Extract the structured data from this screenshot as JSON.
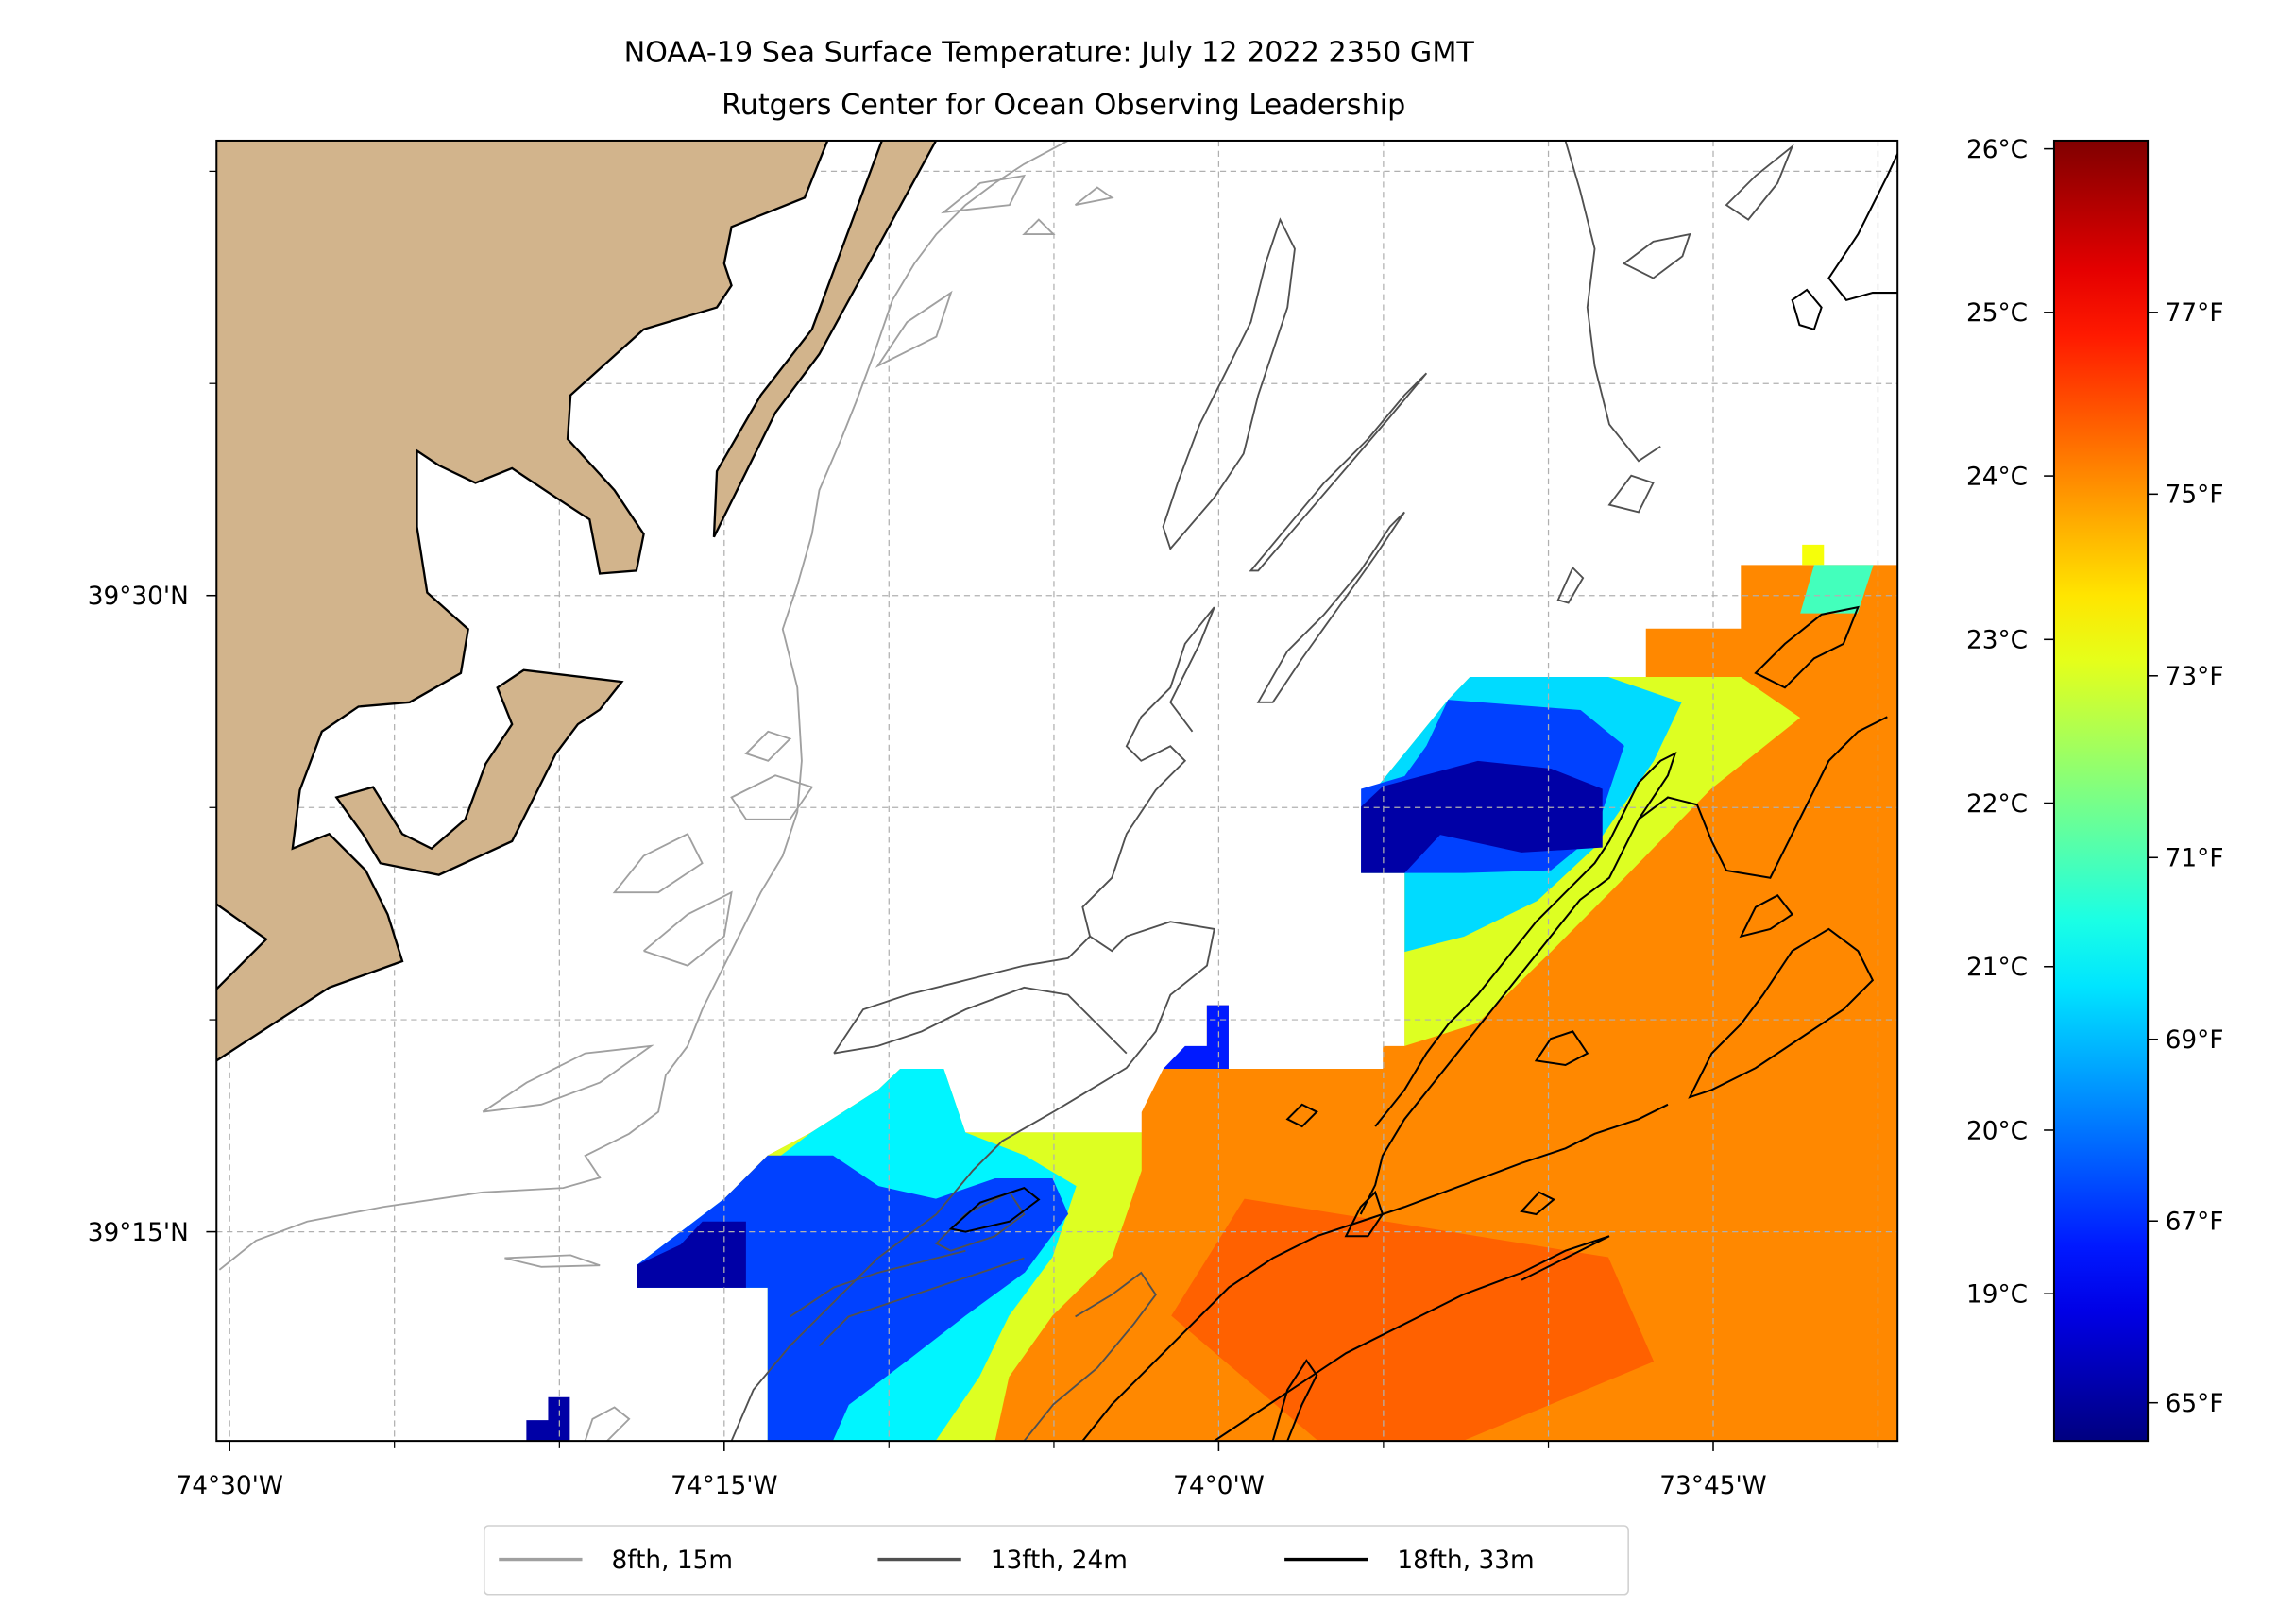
{
  "title": {
    "line1": "NOAA-19 Sea Surface Temperature: July 12 2022 2350 GMT",
    "line2": "Rutgers Center for Ocean Observing Leadership"
  },
  "colors": {
    "land": "#d2b48c",
    "contour_8fth": "#a0a0a0",
    "contour_13fth": "#505050",
    "contour_18fth": "#000000"
  },
  "chart_data": {
    "type": "heatmap",
    "colormap": "jet",
    "units": "°C",
    "clim": [
      18.1,
      26.05
    ],
    "extent": {
      "lon": [
        -74.507,
        -73.657
      ],
      "lat": [
        39.168,
        39.679
      ]
    },
    "x_ticks": [
      {
        "value": -74.5,
        "label": "74°30'W"
      },
      {
        "value": -74.25,
        "label": "74°15'W"
      },
      {
        "value": -74.0,
        "label": "74°0'W"
      },
      {
        "value": -73.75,
        "label": "73°45'W"
      }
    ],
    "x_minor_ticks": [
      -74.4167,
      -74.3333,
      -74.1667,
      -74.0833,
      -73.9167,
      -73.8333,
      -73.6667
    ],
    "y_ticks": [
      {
        "value": 39.5,
        "label": "39°30'N"
      },
      {
        "value": 39.25,
        "label": "39°15'N"
      }
    ],
    "y_minor_ticks": [
      39.6667,
      39.5833,
      39.4167,
      39.3333
    ],
    "colorbar_celsius_ticks": [
      {
        "value": 26,
        "label": "26°C"
      },
      {
        "value": 25,
        "label": "25°C"
      },
      {
        "value": 24,
        "label": "24°C"
      },
      {
        "value": 23,
        "label": "23°C"
      },
      {
        "value": 22,
        "label": "22°C"
      },
      {
        "value": 21,
        "label": "21°C"
      },
      {
        "value": 20,
        "label": "20°C"
      },
      {
        "value": 19,
        "label": "19°C"
      }
    ],
    "colorbar_fahrenheit_ticks": [
      {
        "value": 77,
        "label": "77°F"
      },
      {
        "value": 75,
        "label": "75°F"
      },
      {
        "value": 73,
        "label": "73°F"
      },
      {
        "value": 71,
        "label": "71°F"
      },
      {
        "value": 69,
        "label": "69°F"
      },
      {
        "value": 67,
        "label": "67°F"
      },
      {
        "value": 65,
        "label": "65°F"
      }
    ],
    "regions": [
      {
        "name": "warm-shelf-water",
        "value": 24.0,
        "polygon": [
          [
            -73.657,
            39.512
          ],
          [
            -73.736,
            39.512
          ],
          [
            -73.736,
            39.487
          ],
          [
            -73.784,
            39.487
          ],
          [
            -73.784,
            39.468
          ],
          [
            -73.873,
            39.468
          ],
          [
            -73.873,
            39.459
          ],
          [
            -73.884,
            39.459
          ],
          [
            -73.895,
            39.441
          ],
          [
            -73.917,
            39.425
          ],
          [
            -73.928,
            39.417
          ],
          [
            -73.928,
            39.391
          ],
          [
            -73.906,
            39.391
          ],
          [
            -73.906,
            39.323
          ],
          [
            -73.917,
            39.323
          ],
          [
            -73.917,
            39.314
          ],
          [
            -73.995,
            39.314
          ],
          [
            -73.995,
            39.339
          ],
          [
            -74.006,
            39.339
          ],
          [
            -74.006,
            39.323
          ],
          [
            -74.028,
            39.314
          ],
          [
            -74.039,
            39.297
          ],
          [
            -74.039,
            39.289
          ],
          [
            -74.128,
            39.289
          ],
          [
            -74.139,
            39.297
          ],
          [
            -74.139,
            39.314
          ],
          [
            -74.161,
            39.314
          ],
          [
            -74.172,
            39.306
          ],
          [
            -74.206,
            39.289
          ],
          [
            -74.228,
            39.28
          ],
          [
            -74.25,
            39.263
          ],
          [
            -74.272,
            39.245
          ],
          [
            -74.294,
            39.237
          ],
          [
            -74.294,
            39.228
          ],
          [
            -74.228,
            39.228
          ],
          [
            -74.228,
            39.168
          ],
          [
            -73.657,
            39.168
          ]
        ]
      },
      {
        "name": "warmer-patch",
        "value": 24.3,
        "polygon": [
          [
            -73.987,
            39.263
          ],
          [
            -73.803,
            39.24
          ],
          [
            -73.78,
            39.199
          ],
          [
            -73.876,
            39.168
          ],
          [
            -73.95,
            39.168
          ],
          [
            -74.024,
            39.217
          ]
        ]
      },
      {
        "name": "top-bump",
        "value": 23.0,
        "polygon": [
          [
            -73.705,
            39.52
          ],
          [
            -73.694,
            39.52
          ],
          [
            -73.694,
            39.512
          ],
          [
            -73.705,
            39.512
          ]
        ]
      },
      {
        "name": "top-green-patch",
        "value": 21.6,
        "polygon": [
          [
            -73.699,
            39.512
          ],
          [
            -73.669,
            39.512
          ],
          [
            -73.677,
            39.493
          ],
          [
            -73.706,
            39.493
          ]
        ]
      },
      {
        "name": "east-eddy-edge",
        "value": 22.8,
        "polygon": [
          [
            -73.873,
            39.468
          ],
          [
            -73.736,
            39.468
          ],
          [
            -73.706,
            39.452
          ],
          [
            -73.751,
            39.424
          ],
          [
            -73.795,
            39.389
          ],
          [
            -73.832,
            39.36
          ],
          [
            -73.869,
            39.332
          ],
          [
            -73.906,
            39.323
          ],
          [
            -73.906,
            39.391
          ],
          [
            -73.928,
            39.391
          ],
          [
            -73.928,
            39.417
          ],
          [
            -73.884,
            39.459
          ]
        ]
      },
      {
        "name": "east-eddy-cool",
        "value": 20.8,
        "polygon": [
          [
            -73.873,
            39.468
          ],
          [
            -73.803,
            39.468
          ],
          [
            -73.766,
            39.458
          ],
          [
            -73.78,
            39.435
          ],
          [
            -73.81,
            39.401
          ],
          [
            -73.839,
            39.38
          ],
          [
            -73.876,
            39.366
          ],
          [
            -73.906,
            39.36
          ],
          [
            -73.906,
            39.391
          ],
          [
            -73.928,
            39.391
          ],
          [
            -73.928,
            39.417
          ],
          [
            -73.884,
            39.459
          ]
        ]
      },
      {
        "name": "east-eddy-cold",
        "value": 19.6,
        "polygon": [
          [
            -73.884,
            39.459
          ],
          [
            -73.817,
            39.455
          ],
          [
            -73.795,
            39.441
          ],
          [
            -73.81,
            39.406
          ],
          [
            -73.832,
            39.392
          ],
          [
            -73.876,
            39.391
          ],
          [
            -73.928,
            39.391
          ],
          [
            -73.928,
            39.424
          ],
          [
            -73.906,
            39.429
          ],
          [
            -73.895,
            39.441
          ]
        ]
      },
      {
        "name": "east-eddy-core",
        "value": 18.4,
        "polygon": [
          [
            -73.917,
            39.425
          ],
          [
            -73.869,
            39.435
          ],
          [
            -73.832,
            39.432
          ],
          [
            -73.806,
            39.424
          ],
          [
            -73.806,
            39.401
          ],
          [
            -73.847,
            39.399
          ],
          [
            -73.888,
            39.406
          ],
          [
            -73.906,
            39.391
          ],
          [
            -73.928,
            39.391
          ],
          [
            -73.928,
            39.417
          ]
        ]
      },
      {
        "name": "west-front",
        "value": 22.8,
        "polygon": [
          [
            -74.172,
            39.306
          ],
          [
            -74.161,
            39.314
          ],
          [
            -74.139,
            39.314
          ],
          [
            -74.128,
            39.289
          ],
          [
            -74.039,
            39.289
          ],
          [
            -74.039,
            39.274
          ],
          [
            -74.054,
            39.24
          ],
          [
            -74.084,
            39.217
          ],
          [
            -74.106,
            39.193
          ],
          [
            -74.113,
            39.168
          ],
          [
            -74.228,
            39.168
          ],
          [
            -74.228,
            39.228
          ],
          [
            -74.294,
            39.228
          ],
          [
            -74.294,
            39.237
          ],
          [
            -74.272,
            39.245
          ],
          [
            -74.25,
            39.263
          ],
          [
            -74.228,
            39.28
          ],
          [
            -74.206,
            39.289
          ]
        ]
      },
      {
        "name": "west-cool",
        "value": 21.0,
        "polygon": [
          [
            -74.161,
            39.314
          ],
          [
            -74.139,
            39.314
          ],
          [
            -74.128,
            39.289
          ],
          [
            -74.098,
            39.28
          ],
          [
            -74.072,
            39.268
          ],
          [
            -74.084,
            39.24
          ],
          [
            -74.106,
            39.217
          ],
          [
            -74.121,
            39.193
          ],
          [
            -74.143,
            39.168
          ],
          [
            -74.228,
            39.168
          ],
          [
            -74.228,
            39.228
          ],
          [
            -74.294,
            39.228
          ],
          [
            -74.294,
            39.237
          ],
          [
            -74.25,
            39.263
          ],
          [
            -74.206,
            39.289
          ],
          [
            -74.172,
            39.306
          ]
        ]
      },
      {
        "name": "west-cold",
        "value": 19.6,
        "polygon": [
          [
            -74.228,
            39.28
          ],
          [
            -74.195,
            39.28
          ],
          [
            -74.172,
            39.268
          ],
          [
            -74.143,
            39.263
          ],
          [
            -74.113,
            39.271
          ],
          [
            -74.084,
            39.271
          ],
          [
            -74.076,
            39.257
          ],
          [
            -74.098,
            39.234
          ],
          [
            -74.128,
            39.217
          ],
          [
            -74.158,
            39.199
          ],
          [
            -74.187,
            39.182
          ],
          [
            -74.195,
            39.168
          ],
          [
            -74.228,
            39.168
          ],
          [
            -74.228,
            39.228
          ],
          [
            -74.294,
            39.228
          ],
          [
            -74.294,
            39.237
          ],
          [
            -74.25,
            39.263
          ]
        ]
      },
      {
        "name": "west-core",
        "value": 18.4,
        "polygon": [
          [
            -74.294,
            39.237
          ],
          [
            -74.272,
            39.245
          ],
          [
            -74.261,
            39.254
          ],
          [
            -74.239,
            39.254
          ],
          [
            -74.239,
            39.228
          ],
          [
            -74.294,
            39.228
          ]
        ]
      },
      {
        "name": "isolated-cold-pixels",
        "value": 18.4,
        "polygon": [
          [
            -74.35,
            39.176
          ],
          [
            -74.339,
            39.176
          ],
          [
            -74.339,
            39.185
          ],
          [
            -74.328,
            39.185
          ],
          [
            -74.328,
            39.168
          ],
          [
            -74.35,
            39.168
          ]
        ]
      },
      {
        "name": "nearshore-cold-pixels",
        "value": 19.3,
        "polygon": [
          [
            -74.006,
            39.339
          ],
          [
            -73.995,
            39.339
          ],
          [
            -73.995,
            39.314
          ],
          [
            -74.028,
            39.314
          ],
          [
            -74.017,
            39.323
          ],
          [
            -74.006,
            39.323
          ]
        ]
      }
    ]
  },
  "legend": {
    "items": [
      {
        "label": "8fth, 15m",
        "color": "#a0a0a0"
      },
      {
        "label": "13fth, 24m",
        "color": "#505050"
      },
      {
        "label": "18fth, 33m",
        "color": "#000000"
      }
    ]
  }
}
